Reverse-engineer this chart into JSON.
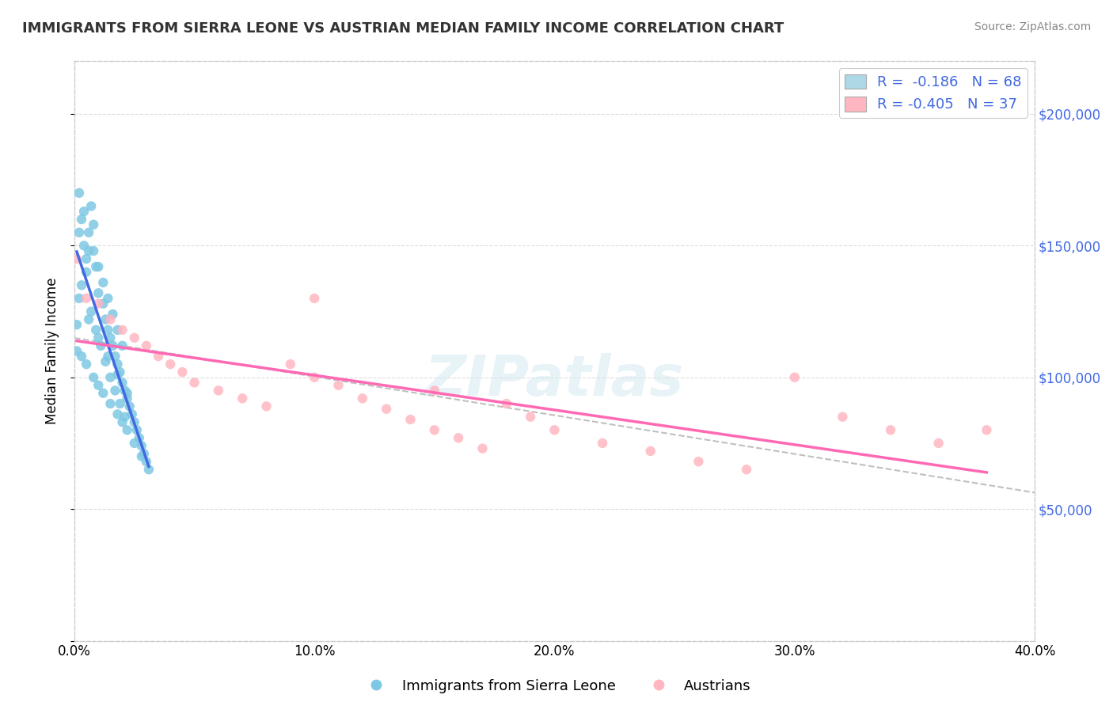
{
  "title": "IMMIGRANTS FROM SIERRA LEONE VS AUSTRIAN MEDIAN FAMILY INCOME CORRELATION CHART",
  "source": "Source: ZipAtlas.com",
  "ylabel": "Median Family Income",
  "xlim": [
    0.0,
    0.4
  ],
  "ylim": [
    0,
    220000
  ],
  "yticks": [
    0,
    50000,
    100000,
    150000,
    200000
  ],
  "ytick_labels": [
    "",
    "$50,000",
    "$100,000",
    "$150,000",
    "$200,000"
  ],
  "xtick_labels": [
    "0.0%",
    "10.0%",
    "20.0%",
    "30.0%",
    "40.0%"
  ],
  "xticks": [
    0.0,
    0.1,
    0.2,
    0.3,
    0.4
  ],
  "blue_color": "#7ec8e3",
  "pink_color": "#ffb6c1",
  "blue_line_color": "#4169e1",
  "pink_line_color": "#ff69b4",
  "dashed_line_color": "#c0c0c0",
  "watermark": "ZIPatlas",
  "legend_blue_label": "R =  -0.186   N = 68",
  "legend_pink_label": "R = -0.405   N = 37",
  "legend_blue_fill": "#add8e6",
  "legend_pink_fill": "#ffb6c1",
  "bottom_legend_blue": "Immigrants from Sierra Leone",
  "bottom_legend_pink": "Austrians",
  "blue_scatter_x": [
    0.001,
    0.002,
    0.003,
    0.004,
    0.005,
    0.006,
    0.007,
    0.008,
    0.009,
    0.01,
    0.012,
    0.013,
    0.014,
    0.015,
    0.016,
    0.017,
    0.018,
    0.019,
    0.02,
    0.021,
    0.022,
    0.023,
    0.024,
    0.025,
    0.026,
    0.027,
    0.028,
    0.029,
    0.03,
    0.031,
    0.003,
    0.005,
    0.007,
    0.009,
    0.011,
    0.013,
    0.015,
    0.017,
    0.019,
    0.021,
    0.002,
    0.004,
    0.006,
    0.008,
    0.01,
    0.012,
    0.014,
    0.016,
    0.018,
    0.02,
    0.001,
    0.003,
    0.005,
    0.008,
    0.01,
    0.012,
    0.015,
    0.018,
    0.02,
    0.022,
    0.025,
    0.028,
    0.002,
    0.006,
    0.01,
    0.014,
    0.018,
    0.022
  ],
  "blue_scatter_y": [
    120000,
    155000,
    160000,
    150000,
    140000,
    148000,
    165000,
    158000,
    142000,
    132000,
    128000,
    122000,
    118000,
    115000,
    112000,
    108000,
    105000,
    102000,
    98000,
    95000,
    92000,
    89000,
    86000,
    83000,
    80000,
    77000,
    74000,
    71000,
    68000,
    65000,
    135000,
    145000,
    125000,
    118000,
    112000,
    106000,
    100000,
    95000,
    90000,
    85000,
    170000,
    163000,
    155000,
    148000,
    142000,
    136000,
    130000,
    124000,
    118000,
    112000,
    110000,
    108000,
    105000,
    100000,
    97000,
    94000,
    90000,
    86000,
    83000,
    80000,
    75000,
    70000,
    130000,
    122000,
    115000,
    108000,
    101000,
    94000
  ],
  "pink_scatter_x": [
    0.001,
    0.005,
    0.01,
    0.015,
    0.02,
    0.025,
    0.03,
    0.035,
    0.04,
    0.045,
    0.05,
    0.06,
    0.07,
    0.08,
    0.09,
    0.1,
    0.11,
    0.12,
    0.13,
    0.14,
    0.15,
    0.16,
    0.17,
    0.18,
    0.19,
    0.2,
    0.22,
    0.24,
    0.26,
    0.28,
    0.3,
    0.32,
    0.34,
    0.36,
    0.38,
    0.1,
    0.15
  ],
  "pink_scatter_y": [
    145000,
    130000,
    128000,
    122000,
    118000,
    115000,
    112000,
    108000,
    105000,
    102000,
    98000,
    95000,
    92000,
    89000,
    105000,
    100000,
    97000,
    92000,
    88000,
    84000,
    80000,
    77000,
    73000,
    90000,
    85000,
    80000,
    75000,
    72000,
    68000,
    65000,
    100000,
    85000,
    80000,
    75000,
    80000,
    130000,
    95000
  ]
}
